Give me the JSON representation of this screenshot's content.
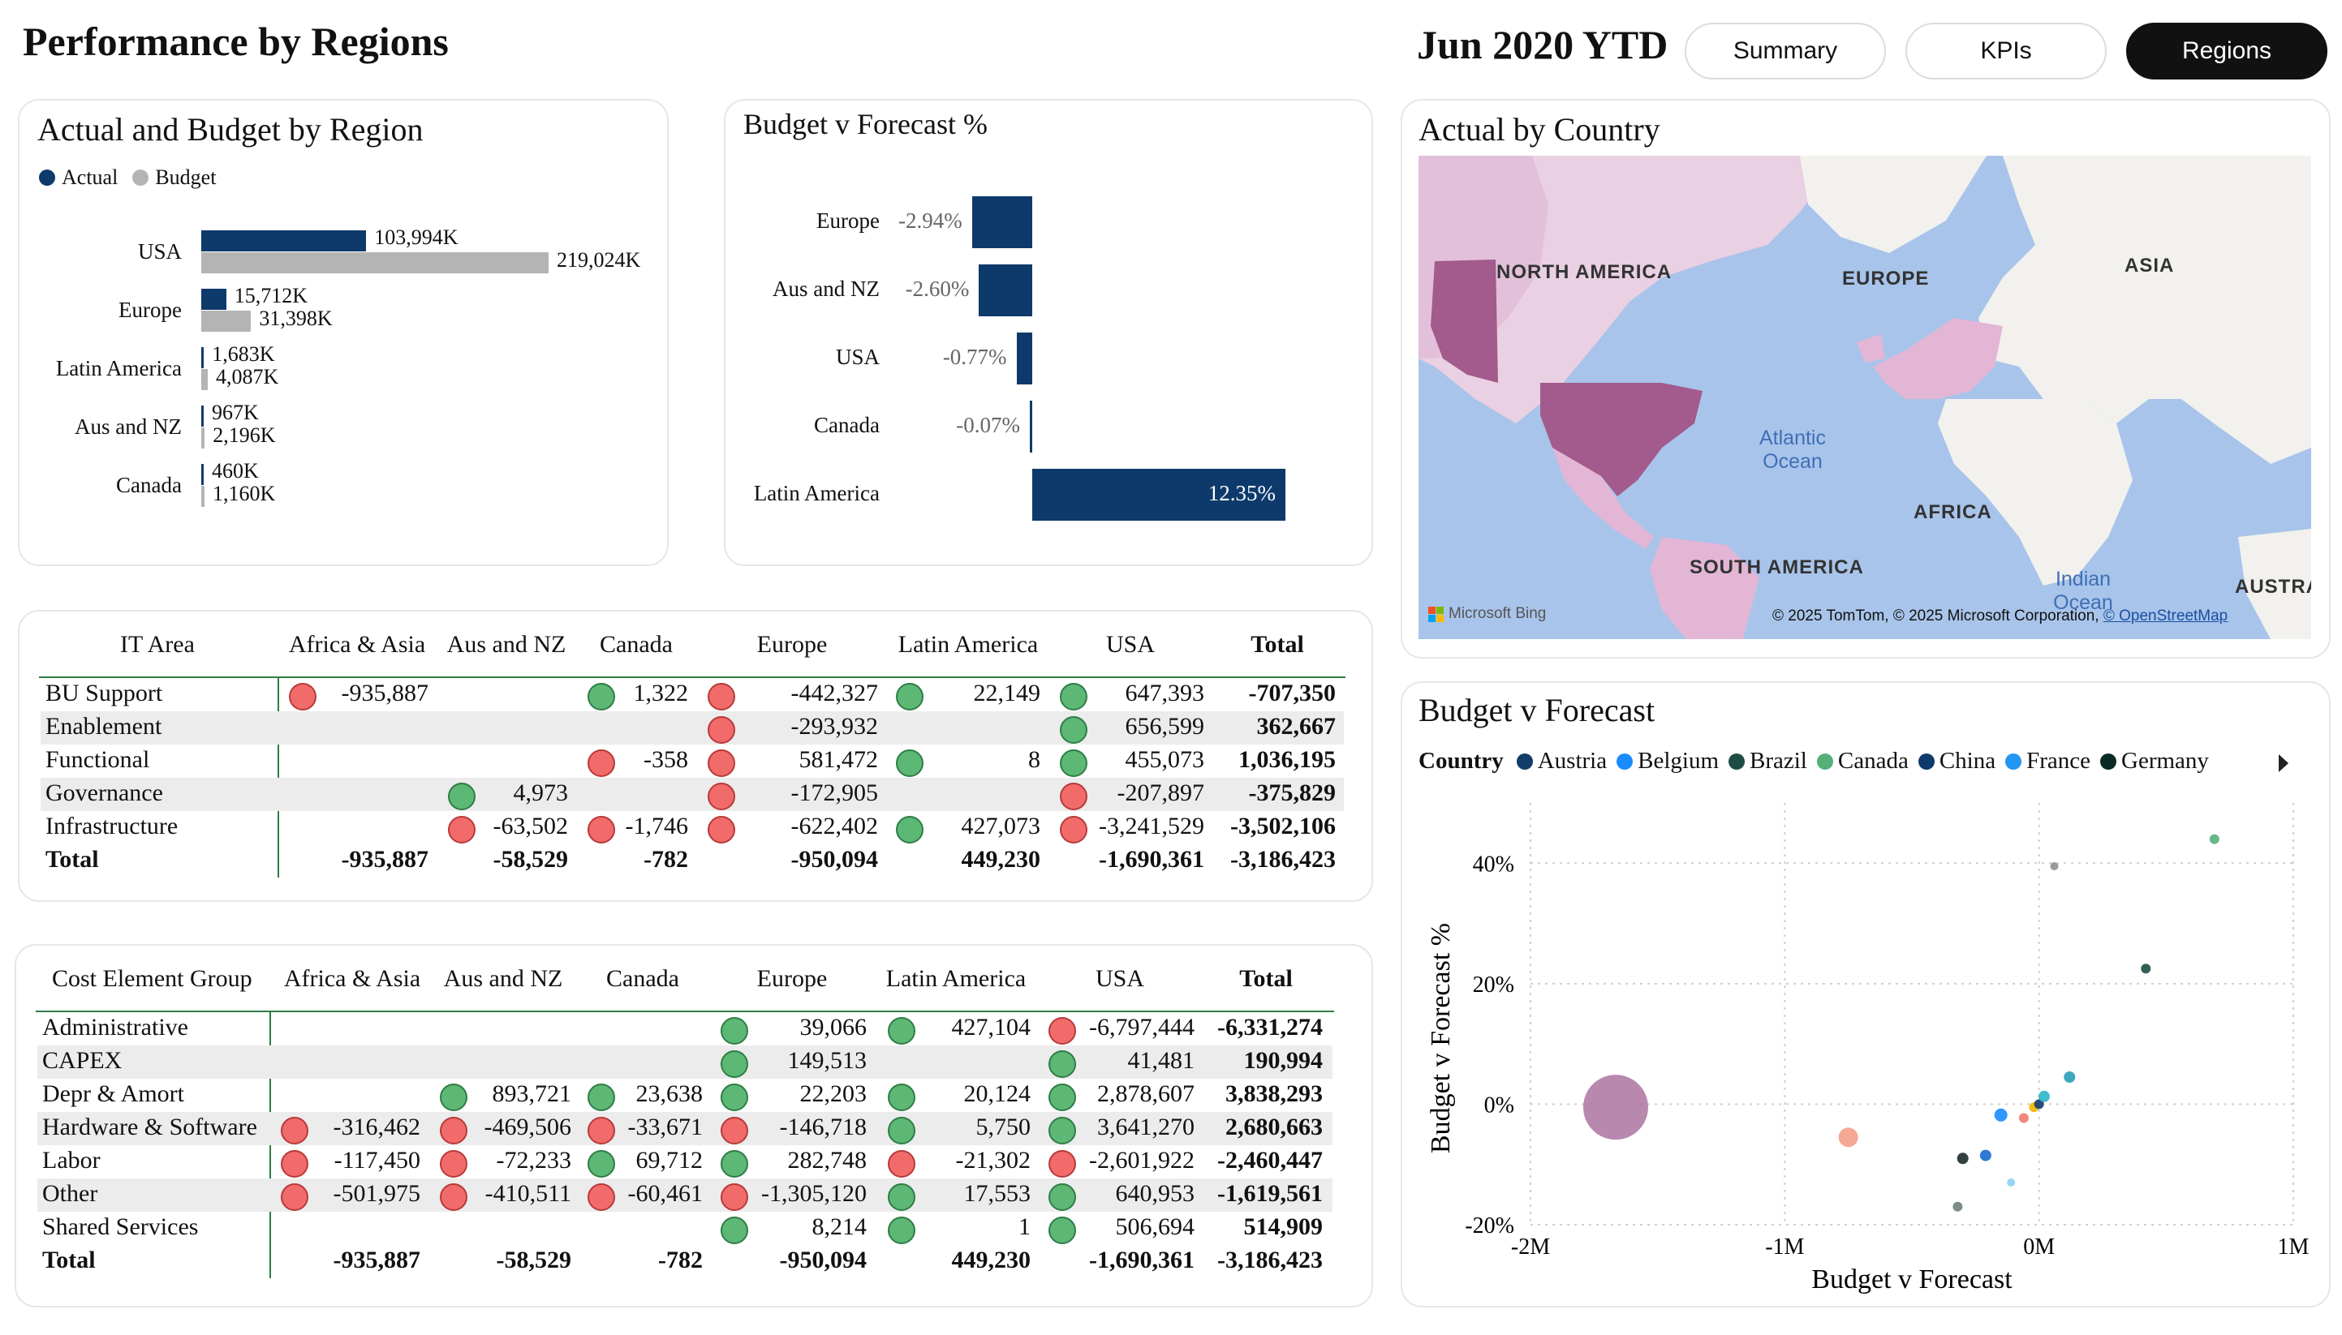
{
  "page": {
    "title": "Performance by Regions",
    "period": "Jun 2020 YTD"
  },
  "nav": {
    "tabs": [
      {
        "label": "Summary"
      },
      {
        "label": "KPIs"
      },
      {
        "label": "Regions"
      }
    ],
    "active": "Regions"
  },
  "colors": {
    "actual": "#0e3a6b",
    "budget": "#b4b4b4",
    "good": "#5cb874",
    "bad": "#f26b6b"
  },
  "actual_budget": {
    "title": "Actual and Budget by Region",
    "legend": [
      "Actual",
      "Budget"
    ],
    "rows": [
      {
        "region": "USA",
        "actual": 103994,
        "budget": 219024,
        "actual_label": "103,994K",
        "budget_label": "219,024K"
      },
      {
        "region": "Europe",
        "actual": 15712,
        "budget": 31398,
        "actual_label": "15,712K",
        "budget_label": "31,398K"
      },
      {
        "region": "Latin America",
        "actual": 1683,
        "budget": 4087,
        "actual_label": "1,683K",
        "budget_label": "4,087K"
      },
      {
        "region": "Aus and NZ",
        "actual": 967,
        "budget": 2196,
        "actual_label": "967K",
        "budget_label": "2,196K"
      },
      {
        "region": "Canada",
        "actual": 460,
        "budget": 1160,
        "actual_label": "460K",
        "budget_label": "1,160K"
      }
    ]
  },
  "bvf_pct": {
    "title": "Budget v Forecast %",
    "rows": [
      {
        "region": "Europe",
        "value": -2.94,
        "label": "-2.94%"
      },
      {
        "region": "Aus and NZ",
        "value": -2.6,
        "label": "-2.60%"
      },
      {
        "region": "USA",
        "value": -0.77,
        "label": "-0.77%"
      },
      {
        "region": "Canada",
        "value": -0.07,
        "label": "-0.07%"
      },
      {
        "region": "Latin America",
        "value": 12.35,
        "label": "12.35%"
      }
    ]
  },
  "map": {
    "title": "Actual by Country",
    "labels": {
      "na": "NORTH AMERICA",
      "europe": "EUROPE",
      "asia": "ASIA",
      "africa": "AFRICA",
      "sa": "SOUTH AMERICA",
      "australia": "AUSTRALIA",
      "atlantic": "Atlantic Ocean",
      "indian": "Indian Ocean"
    },
    "logo": "Microsoft Bing",
    "attribution": "© 2025 TomTom, © 2025 Microsoft Corporation,",
    "osm": "© OpenStreetMap"
  },
  "it_table": {
    "headers": [
      "IT Area",
      "Africa & Asia",
      "Aus and NZ",
      "Canada",
      "Europe",
      "Latin America",
      "USA",
      "Total"
    ],
    "rows": [
      {
        "label": "BU Support",
        "cells": [
          {
            "v": "-935,887",
            "k": "r"
          },
          {
            "v": "",
            "k": ""
          },
          {
            "v": "1,322",
            "k": "g"
          },
          {
            "v": "-442,327",
            "k": "r"
          },
          {
            "v": "22,149",
            "k": "g"
          },
          {
            "v": "647,393",
            "k": "g"
          }
        ],
        "total": "-707,350"
      },
      {
        "label": "Enablement",
        "cells": [
          {
            "v": "",
            "k": ""
          },
          {
            "v": "",
            "k": ""
          },
          {
            "v": "",
            "k": ""
          },
          {
            "v": "-293,932",
            "k": "r"
          },
          {
            "v": "",
            "k": ""
          },
          {
            "v": "656,599",
            "k": "g"
          }
        ],
        "total": "362,667"
      },
      {
        "label": "Functional",
        "cells": [
          {
            "v": "",
            "k": ""
          },
          {
            "v": "",
            "k": ""
          },
          {
            "v": "-358",
            "k": "r"
          },
          {
            "v": "581,472",
            "k": "r"
          },
          {
            "v": "8",
            "k": "g"
          },
          {
            "v": "455,073",
            "k": "g"
          }
        ],
        "total": "1,036,195"
      },
      {
        "label": "Governance",
        "cells": [
          {
            "v": "",
            "k": ""
          },
          {
            "v": "4,973",
            "k": "g"
          },
          {
            "v": "",
            "k": ""
          },
          {
            "v": "-172,905",
            "k": "r"
          },
          {
            "v": "",
            "k": ""
          },
          {
            "v": "-207,897",
            "k": "r"
          }
        ],
        "total": "-375,829"
      },
      {
        "label": "Infrastructure",
        "cells": [
          {
            "v": "",
            "k": ""
          },
          {
            "v": "-63,502",
            "k": "r"
          },
          {
            "v": "-1,746",
            "k": "r"
          },
          {
            "v": "-622,402",
            "k": "r"
          },
          {
            "v": "427,073",
            "k": "g"
          },
          {
            "v": "-3,241,529",
            "k": "r"
          }
        ],
        "total": "-3,502,106"
      }
    ],
    "total_row": {
      "label": "Total",
      "cells": [
        "-935,887",
        "-58,529",
        "-782",
        "-950,094",
        "449,230",
        "-1,690,361"
      ],
      "total": "-3,186,423"
    }
  },
  "cost_table": {
    "headers": [
      "Cost Element Group",
      "Africa & Asia",
      "Aus and NZ",
      "Canada",
      "Europe",
      "Latin America",
      "USA",
      "Total"
    ],
    "rows": [
      {
        "label": "Administrative",
        "cells": [
          {
            "v": "",
            "k": ""
          },
          {
            "v": "",
            "k": ""
          },
          {
            "v": "",
            "k": ""
          },
          {
            "v": "39,066",
            "k": "g"
          },
          {
            "v": "427,104",
            "k": "g"
          },
          {
            "v": "-6,797,444",
            "k": "r"
          }
        ],
        "total": "-6,331,274"
      },
      {
        "label": "CAPEX",
        "cells": [
          {
            "v": "",
            "k": ""
          },
          {
            "v": "",
            "k": ""
          },
          {
            "v": "",
            "k": ""
          },
          {
            "v": "149,513",
            "k": "g"
          },
          {
            "v": "",
            "k": ""
          },
          {
            "v": "41,481",
            "k": "g"
          }
        ],
        "total": "190,994"
      },
      {
        "label": "Depr & Amort",
        "cells": [
          {
            "v": "",
            "k": ""
          },
          {
            "v": "893,721",
            "k": "g"
          },
          {
            "v": "23,638",
            "k": "g"
          },
          {
            "v": "22,203",
            "k": "g"
          },
          {
            "v": "20,124",
            "k": "g"
          },
          {
            "v": "2,878,607",
            "k": "g"
          }
        ],
        "total": "3,838,293"
      },
      {
        "label": "Hardware & Software",
        "cells": [
          {
            "v": "-316,462",
            "k": "r"
          },
          {
            "v": "-469,506",
            "k": "r"
          },
          {
            "v": "-33,671",
            "k": "r"
          },
          {
            "v": "-146,718",
            "k": "r"
          },
          {
            "v": "5,750",
            "k": "g"
          },
          {
            "v": "3,641,270",
            "k": "g"
          }
        ],
        "total": "2,680,663"
      },
      {
        "label": "Labor",
        "cells": [
          {
            "v": "-117,450",
            "k": "r"
          },
          {
            "v": "-72,233",
            "k": "r"
          },
          {
            "v": "69,712",
            "k": "g"
          },
          {
            "v": "282,748",
            "k": "g"
          },
          {
            "v": "-21,302",
            "k": "r"
          },
          {
            "v": "-2,601,922",
            "k": "r"
          }
        ],
        "total": "-2,460,447"
      },
      {
        "label": "Other",
        "cells": [
          {
            "v": "-501,975",
            "k": "r"
          },
          {
            "v": "-410,511",
            "k": "r"
          },
          {
            "v": "-60,461",
            "k": "r"
          },
          {
            "v": "-1,305,120",
            "k": "r"
          },
          {
            "v": "17,553",
            "k": "g"
          },
          {
            "v": "640,953",
            "k": "g"
          }
        ],
        "total": "-1,619,561"
      },
      {
        "label": "Shared Services",
        "cells": [
          {
            "v": "",
            "k": ""
          },
          {
            "v": "",
            "k": ""
          },
          {
            "v": "",
            "k": ""
          },
          {
            "v": "8,214",
            "k": "g"
          },
          {
            "v": "1",
            "k": "g"
          },
          {
            "v": "506,694",
            "k": "g"
          }
        ],
        "total": "514,909"
      }
    ],
    "total_row": {
      "label": "Total",
      "cells": [
        "-935,887",
        "-58,529",
        "-782",
        "-950,094",
        "449,230",
        "-1,690,361"
      ],
      "total": "-3,186,423"
    }
  },
  "scatter": {
    "title": "Budget v Forecast",
    "legend_title": "Country",
    "legend": [
      {
        "name": "Austria",
        "color": "#123c69"
      },
      {
        "name": "Belgium",
        "color": "#1a8cff"
      },
      {
        "name": "Brazil",
        "color": "#1e4d45"
      },
      {
        "name": "Canada",
        "color": "#56b07a"
      },
      {
        "name": "China",
        "color": "#0e3a6b"
      },
      {
        "name": "France",
        "color": "#2196f3"
      },
      {
        "name": "Germany",
        "color": "#0b2a26"
      }
    ]
  },
  "chart_data": [
    {
      "type": "bar",
      "title": "Actual and Budget by Region",
      "categories": [
        "USA",
        "Europe",
        "Latin America",
        "Aus and NZ",
        "Canada"
      ],
      "series": [
        {
          "name": "Actual",
          "values": [
            103994,
            15712,
            1683,
            967,
            460
          ]
        },
        {
          "name": "Budget",
          "values": [
            219024,
            31398,
            4087,
            2196,
            1160
          ]
        }
      ],
      "unit": "K"
    },
    {
      "type": "bar",
      "title": "Budget v Forecast %",
      "categories": [
        "Europe",
        "Aus and NZ",
        "USA",
        "Canada",
        "Latin America"
      ],
      "values": [
        -2.94,
        -2.6,
        -0.77,
        -0.07,
        12.35
      ]
    },
    {
      "type": "scatter",
      "title": "",
      "xlabel": "Budget v Forecast",
      "ylabel": "Budget v Forecast %",
      "xlim": [
        -2000000,
        1000000
      ],
      "ylim": [
        -20,
        50
      ],
      "xticks": [
        "-2M",
        "-1M",
        "0M",
        "1M"
      ],
      "yticks": [
        "40%",
        "20%",
        "0%",
        "-20%"
      ],
      "grid": true,
      "points": [
        {
          "x": -1665000,
          "y": -0.5,
          "size": 40,
          "color": "#a86a9a"
        },
        {
          "x": -750000,
          "y": -5.5,
          "size": 12,
          "color": "#f4a08a"
        },
        {
          "x": -320000,
          "y": -17,
          "size": 6,
          "color": "#6f7f7a"
        },
        {
          "x": -300000,
          "y": -9,
          "size": 7,
          "color": "#1b2b2a"
        },
        {
          "x": -210000,
          "y": -8.5,
          "size": 7,
          "color": "#1a6ad0"
        },
        {
          "x": -150000,
          "y": -1.8,
          "size": 8,
          "color": "#1a8cff"
        },
        {
          "x": -110000,
          "y": -13,
          "size": 5,
          "color": "#8ad0f0"
        },
        {
          "x": -60000,
          "y": -2.3,
          "size": 6,
          "color": "#ef7b6b"
        },
        {
          "x": -20000,
          "y": -0.5,
          "size": 6,
          "color": "#f2b400"
        },
        {
          "x": 0,
          "y": 0,
          "size": 6,
          "color": "#123c69"
        },
        {
          "x": 20000,
          "y": 1.3,
          "size": 7,
          "color": "#2bb6c9"
        },
        {
          "x": 60000,
          "y": 39.5,
          "size": 5,
          "color": "#8f8f8f"
        },
        {
          "x": 120000,
          "y": 4.5,
          "size": 7,
          "color": "#2a9fb8"
        },
        {
          "x": 420000,
          "y": 22.5,
          "size": 6,
          "color": "#1e4d45"
        },
        {
          "x": 690000,
          "y": 44,
          "size": 6,
          "color": "#56b07a"
        }
      ]
    }
  ]
}
